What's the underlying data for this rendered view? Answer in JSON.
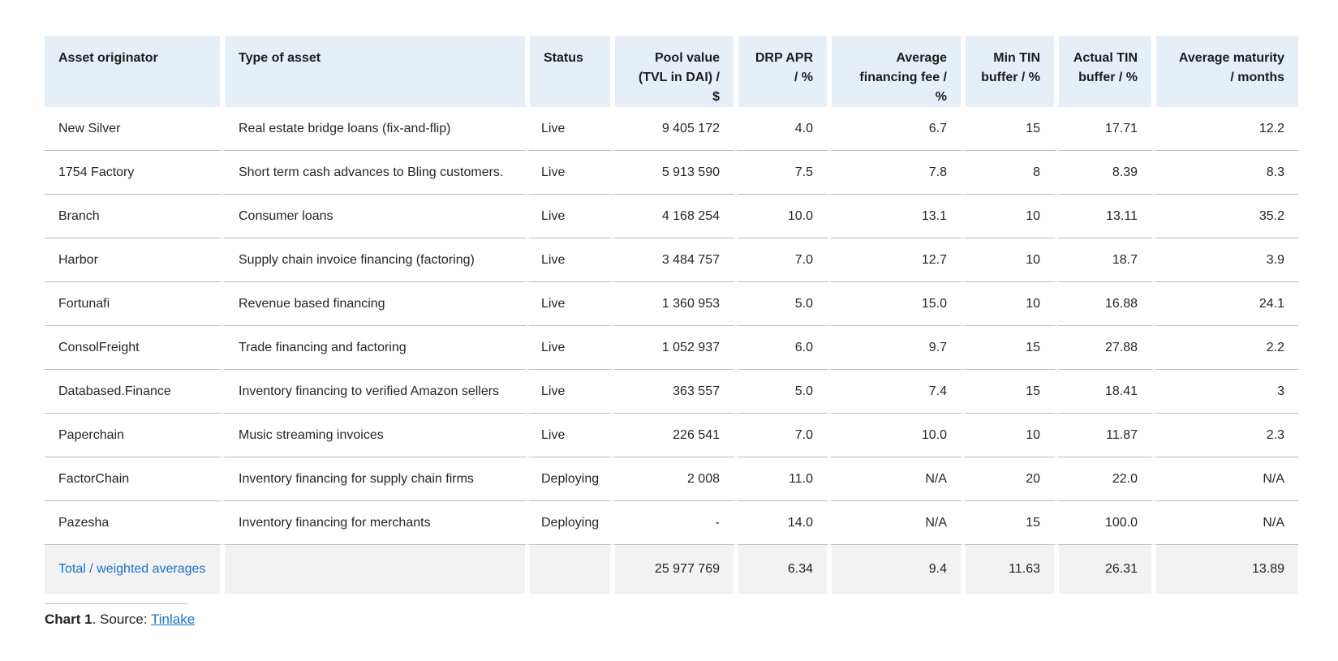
{
  "table": {
    "headers": [
      "Asset originator",
      "Type of asset",
      "Status",
      "Pool value\n(TVL in DAI) / $",
      "DRP APR\n/ %",
      "Average\nfinancing fee / %",
      "Min TIN\nbuffer / %",
      "Actual TIN\nbuffer / %",
      "Average maturity\n/ months"
    ],
    "rows": [
      [
        "New Silver",
        "Real estate bridge loans (fix-and-flip)",
        "Live",
        "9 405 172",
        "4.0",
        "6.7",
        "15",
        "17.71",
        "12.2"
      ],
      [
        "1754 Factory",
        "Short term cash advances to Bling customers.",
        "Live",
        "5 913 590",
        "7.5",
        "7.8",
        "8",
        "8.39",
        "8.3"
      ],
      [
        "Branch",
        "Consumer loans",
        "Live",
        "4 168 254",
        "10.0",
        "13.1",
        "10",
        "13.11",
        "35.2"
      ],
      [
        "Harbor",
        "Supply chain invoice financing (factoring)",
        "Live",
        "3 484 757",
        "7.0",
        "12.7",
        "10",
        "18.7",
        "3.9"
      ],
      [
        "Fortunafi",
        "Revenue based financing",
        "Live",
        "1 360 953",
        "5.0",
        "15.0",
        "10",
        "16.88",
        "24.1"
      ],
      [
        "ConsolFreight",
        "Trade financing and factoring",
        "Live",
        "1 052 937",
        "6.0",
        "9.7",
        "15",
        "27.88",
        "2.2"
      ],
      [
        "Databased.Finance",
        "Inventory financing to verified Amazon sellers",
        "Live",
        "363 557",
        "5.0",
        "7.4",
        "15",
        "18.41",
        "3"
      ],
      [
        "Paperchain",
        "Music streaming invoices",
        "Live",
        "226 541",
        "7.0",
        "10.0",
        "10",
        "11.87",
        "2.3"
      ],
      [
        "FactorChain",
        "Inventory financing for supply chain firms",
        "Deploying",
        "2 008",
        "11.0",
        "N/A",
        "20",
        "22.0",
        "N/A"
      ],
      [
        "Pazesha",
        "Inventory financing for merchants",
        "Deploying",
        "-",
        "14.0",
        "N/A",
        "15",
        "100.0",
        "N/A"
      ]
    ],
    "total": {
      "label": "Total / weighted averages",
      "type": "",
      "status": "",
      "pool_value": "25 977 769",
      "drp_apr": "6.34",
      "avg_fee": "9.4",
      "min_tin": "11.63",
      "actual_tin": "26.31",
      "avg_maturity": "13.89"
    }
  },
  "caption": {
    "label": "Chart 1",
    "text": ". Source: ",
    "link": "Tinlake"
  },
  "colors": {
    "header_bg": "#e6eff8",
    "footer_bg": "#f2f2f2",
    "link": "#1a73c4",
    "rule": "#bdbdbd"
  }
}
